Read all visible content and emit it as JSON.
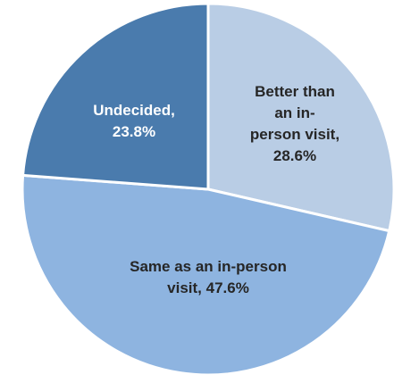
{
  "chart_data": {
    "type": "pie",
    "values": [
      28.6,
      47.6,
      23.8
    ],
    "value_labels": [
      "Better than an in-person visit, 28.6%",
      "Same as an in-person visit, 47.6%",
      "Undecided, 23.8%"
    ],
    "colors": [
      "#b9cde5",
      "#8eb4e0",
      "#4a7bad"
    ],
    "label_colors": [
      "#262626",
      "#262626",
      "#ffffff"
    ]
  }
}
